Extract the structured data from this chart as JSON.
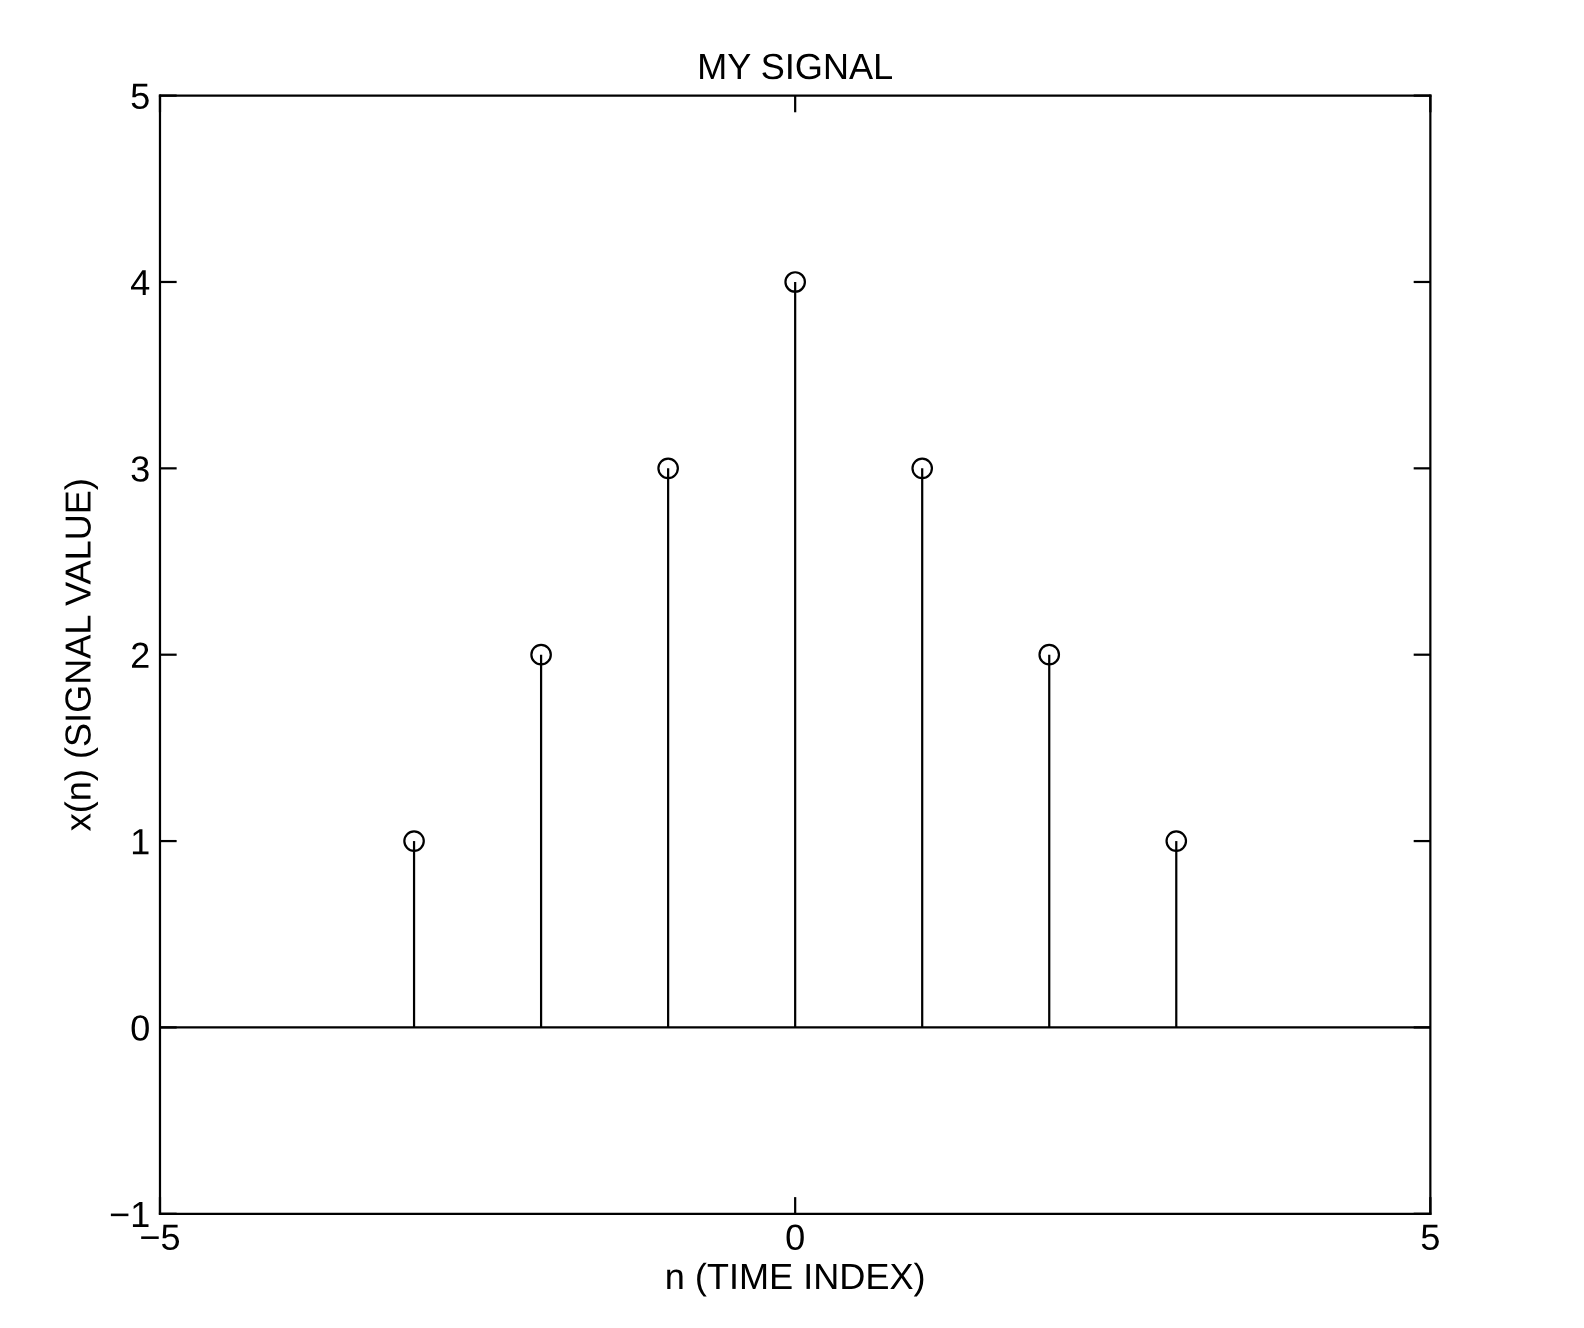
{
  "chart_data": {
    "type": "lollipop",
    "title": "MY SIGNAL",
    "xlabel": "n (TIME INDEX)",
    "ylabel": "x(n) (SIGNAL VALUE)",
    "x": [
      -3,
      -2,
      -1,
      0,
      1,
      2,
      3
    ],
    "values": [
      1,
      2,
      3,
      4,
      3,
      2,
      1
    ],
    "color": "#000000",
    "marker": "circle",
    "xlim": [
      -5,
      5
    ],
    "xticks": [
      {
        "value": -5,
        "label": "−5"
      },
      0,
      5
    ],
    "ylim": [
      -1,
      5
    ],
    "yticks": [
      {
        "value": -1,
        "label": "−1"
      },
      0,
      1,
      2,
      3,
      4,
      5
    ],
    "ref_lines": [
      {
        "axis": "y",
        "value": 0,
        "color": "#000000"
      }
    ],
    "grid": false,
    "legend": false
  }
}
